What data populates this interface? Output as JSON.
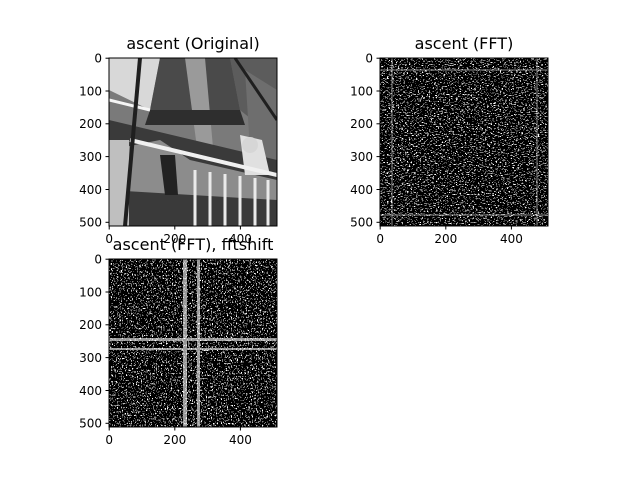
{
  "chart_data": [
    {
      "type": "heatmap",
      "title": "ascent (Original)",
      "colormap": "gray",
      "image_size": [
        512,
        512
      ],
      "xticks": [
        "0",
        "200",
        "400"
      ],
      "yticks": [
        "0",
        "100",
        "200",
        "300",
        "400",
        "500"
      ]
    },
    {
      "type": "heatmap",
      "title": "ascent (FFT)",
      "colormap": "gray",
      "image_size": [
        512,
        512
      ],
      "xticks": [
        "0",
        "200",
        "400"
      ],
      "yticks": [
        "0",
        "100",
        "200",
        "300",
        "400",
        "500"
      ]
    },
    {
      "type": "heatmap",
      "title": "ascent (FFT), fftshift",
      "colormap": "gray",
      "image_size": [
        512,
        512
      ],
      "xticks": [
        "0",
        "200",
        "400"
      ],
      "yticks": [
        "0",
        "100",
        "200",
        "300",
        "400",
        "500"
      ]
    }
  ]
}
